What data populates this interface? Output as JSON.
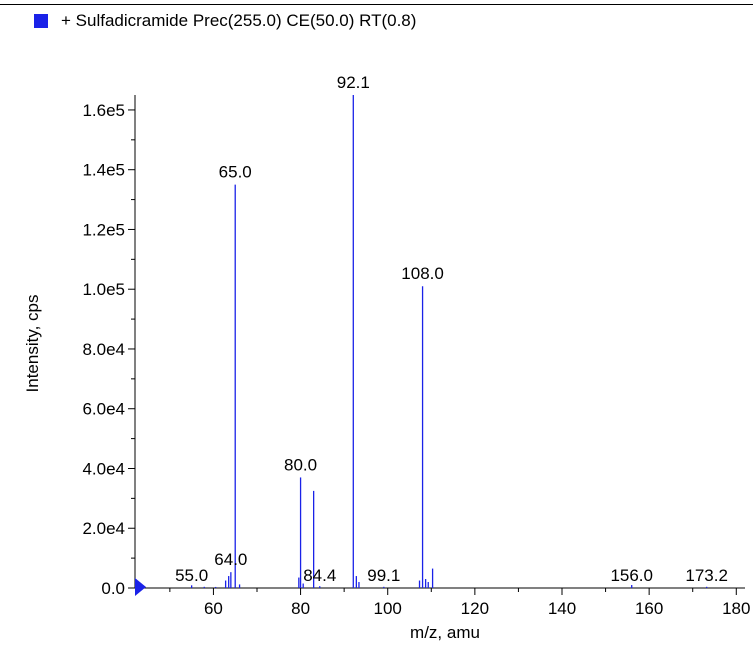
{
  "legend": {
    "label": "+ Sulfadicramide Prec(255.0) CE(50.0) RT(0.8)",
    "color": "#1a22e8"
  },
  "chart_data": {
    "type": "bar",
    "subtype": "mass-spectrum-sticks",
    "xlabel": "m/z, amu",
    "ylabel": "Intensity, cps",
    "xlim": [
      42,
      182
    ],
    "ylim": [
      0,
      165000
    ],
    "x_ticks": [
      {
        "value": 60,
        "label": "60"
      },
      {
        "value": 80,
        "label": "80"
      },
      {
        "value": 100,
        "label": "100"
      },
      {
        "value": 120,
        "label": "120"
      },
      {
        "value": 140,
        "label": "140"
      },
      {
        "value": 160,
        "label": "160"
      },
      {
        "value": 180,
        "label": "180"
      }
    ],
    "y_ticks": [
      {
        "value": 0,
        "label": "0.0"
      },
      {
        "value": 20000,
        "label": "2.0e4"
      },
      {
        "value": 40000,
        "label": "4.0e4"
      },
      {
        "value": 60000,
        "label": "6.0e4"
      },
      {
        "value": 80000,
        "label": "8.0e4"
      },
      {
        "value": 100000,
        "label": "1.0e5"
      },
      {
        "value": 120000,
        "label": "1.2e5"
      },
      {
        "value": 140000,
        "label": "1.4e5"
      },
      {
        "value": 160000,
        "label": "1.6e5"
      }
    ],
    "series": [
      {
        "color": "#1a22e8",
        "points": [
          {
            "x": 42.2,
            "y": 1200
          },
          {
            "x": 55.0,
            "y": 900
          },
          {
            "x": 57.9,
            "y": 400
          },
          {
            "x": 60.5,
            "y": 350
          },
          {
            "x": 62.8,
            "y": 2500
          },
          {
            "x": 63.5,
            "y": 4000
          },
          {
            "x": 64.0,
            "y": 5300
          },
          {
            "x": 65.0,
            "y": 135000
          },
          {
            "x": 66.0,
            "y": 1200
          },
          {
            "x": 79.6,
            "y": 3500
          },
          {
            "x": 80.0,
            "y": 37000
          },
          {
            "x": 80.6,
            "y": 1500
          },
          {
            "x": 83.0,
            "y": 32500
          },
          {
            "x": 84.4,
            "y": 600
          },
          {
            "x": 92.1,
            "y": 165000
          },
          {
            "x": 92.8,
            "y": 4000
          },
          {
            "x": 93.4,
            "y": 2000
          },
          {
            "x": 99.1,
            "y": 400
          },
          {
            "x": 107.3,
            "y": 2500
          },
          {
            "x": 108.0,
            "y": 101000
          },
          {
            "x": 108.7,
            "y": 3000
          },
          {
            "x": 109.3,
            "y": 2000
          },
          {
            "x": 110.3,
            "y": 6500
          },
          {
            "x": 156.0,
            "y": 1000
          },
          {
            "x": 173.2,
            "y": 400
          }
        ]
      }
    ],
    "annotations": [
      {
        "x": 55.0,
        "y": 900,
        "label": "55.0"
      },
      {
        "x": 64.0,
        "y": 5300,
        "label": "64.0"
      },
      {
        "x": 65.0,
        "y": 135000,
        "label": "65.0"
      },
      {
        "x": 80.0,
        "y": 37000,
        "label": "80.0"
      },
      {
        "x": 84.4,
        "y": 600,
        "label": "84.4"
      },
      {
        "x": 92.1,
        "y": 165000,
        "label": "92.1"
      },
      {
        "x": 99.1,
        "y": 400,
        "label": "99.1"
      },
      {
        "x": 108.0,
        "y": 101000,
        "label": "108.0"
      },
      {
        "x": 156.0,
        "y": 1000,
        "label": "156.0"
      },
      {
        "x": 173.2,
        "y": 400,
        "label": "173.2"
      }
    ]
  }
}
